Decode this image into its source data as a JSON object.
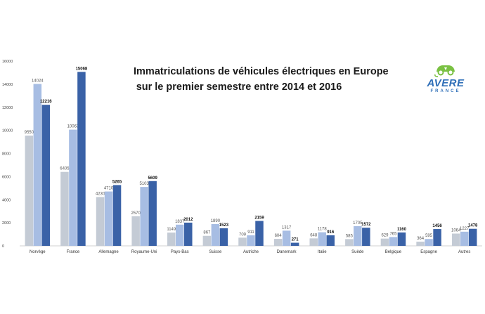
{
  "chart_data": {
    "type": "bar",
    "title_lines": [
      "Immatriculations de véhicules électriques en Europe",
      "sur le premier semestre entre 2014 et 2016"
    ],
    "categories": [
      "Norvège",
      "France",
      "Allemagne",
      "Royaume-Uni",
      "Pays-Bas",
      "Suisse",
      "Autriche",
      "Danemark",
      "Italie",
      "Suède",
      "Belgique",
      "Espagne",
      "Autres"
    ],
    "series": [
      {
        "values": [
          9550,
          6405,
          4230,
          2570,
          1149,
          867,
          709,
          604,
          648,
          585,
          629,
          364,
          1064
        ],
        "color": "#c4cbd5"
      },
      {
        "values": [
          14024,
          10063,
          4710,
          5103,
          1837,
          1890,
          911,
          1317,
          1178,
          1705,
          765,
          595,
          1227
        ],
        "color": "#a7bde3"
      },
      {
        "values": [
          12216,
          15068,
          5265,
          5609,
          2012,
          1523,
          2159,
          271,
          916,
          1572,
          1160,
          1456,
          1478
        ],
        "color": "#3a62a7"
      }
    ],
    "ylim": [
      0,
      16000
    ],
    "yticks": [
      "0",
      "2000",
      "4000",
      "6000",
      "8000",
      "10000",
      "12000",
      "14000",
      "16000"
    ],
    "grid": false,
    "legend": "none"
  },
  "logo": {
    "text": "AVERE",
    "subtext": "FRANCE",
    "brand_color": "#2f6fb8",
    "accent_color": "#7ac143"
  }
}
